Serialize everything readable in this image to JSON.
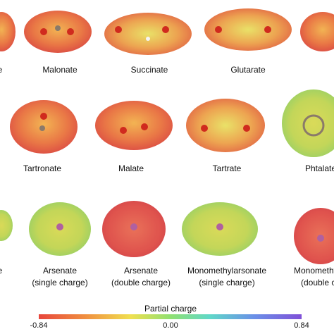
{
  "labels": [
    {
      "lines": [
        "e"
      ]
    },
    {
      "lines": [
        "Malonate"
      ]
    },
    {
      "lines": [
        "Succinate"
      ]
    },
    {
      "lines": [
        "Glutarate"
      ]
    },
    {
      "lines": [
        "Tartronate"
      ]
    },
    {
      "lines": [
        "Malate"
      ]
    },
    {
      "lines": [
        "Tartrate"
      ]
    },
    {
      "lines": [
        "Phtalate"
      ]
    },
    {
      "lines": [
        "e"
      ]
    },
    {
      "lines": [
        "Arsenate",
        "(single charge)"
      ]
    },
    {
      "lines": [
        "Arsenate",
        "(double charge)"
      ]
    },
    {
      "lines": [
        "Monomethylarsonate",
        "(single charge)"
      ]
    },
    {
      "lines": [
        "Monomethylar",
        "(double ch"
      ]
    }
  ],
  "colorbar": {
    "title": "Partial charge",
    "ticks": [
      "-0.84",
      "0.00",
      "0.84"
    ]
  }
}
